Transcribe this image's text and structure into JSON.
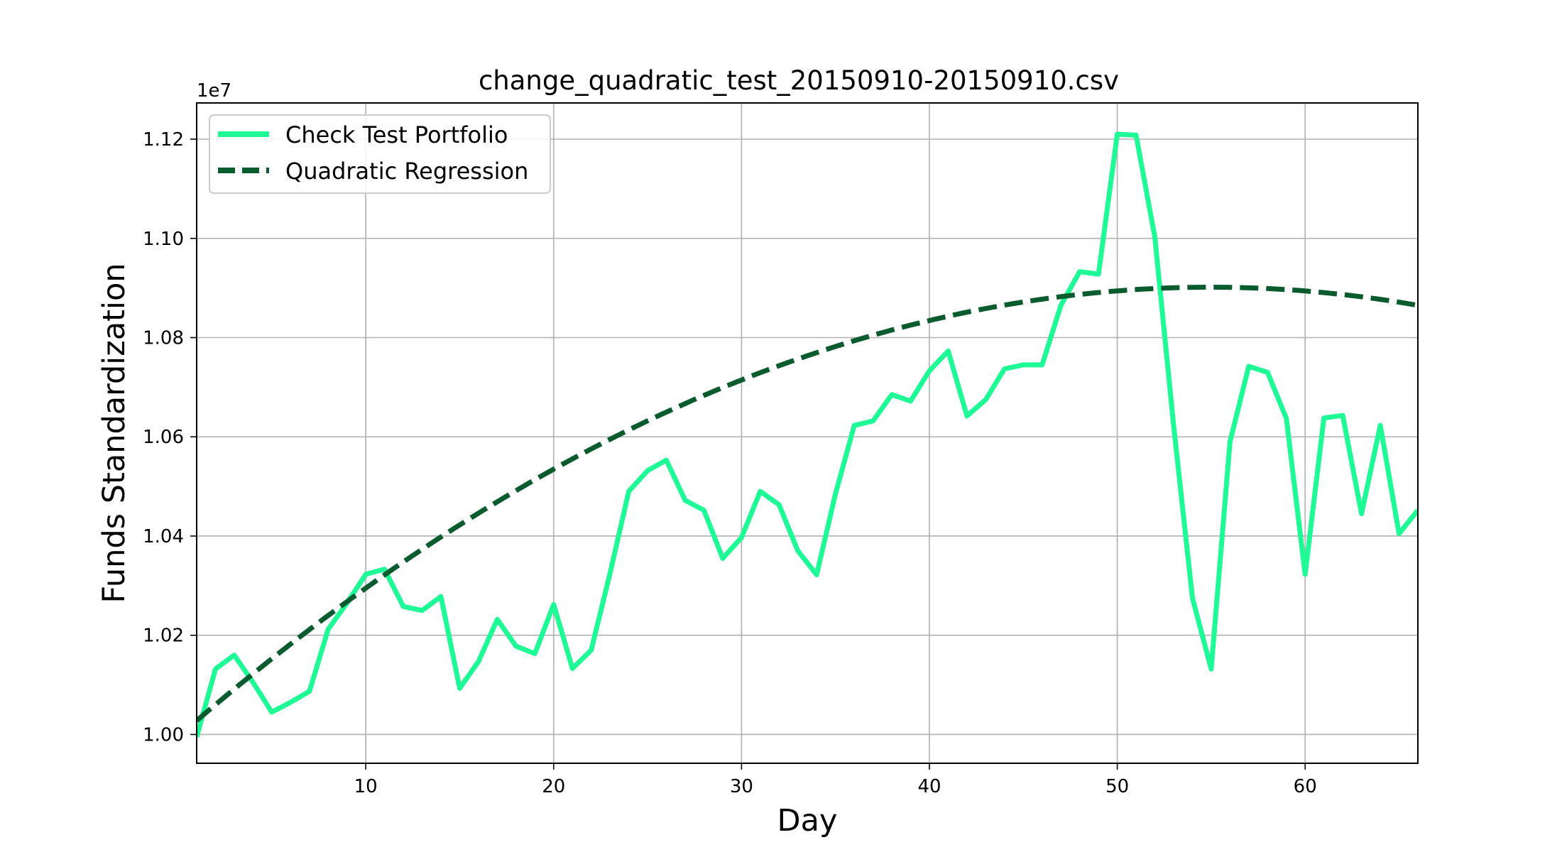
{
  "chart_data": {
    "type": "line",
    "title": "change_quadratic_test_20150910-20150910.csv",
    "xlabel": "Day",
    "ylabel": "Funds Standardization",
    "y_offset_label": "1e7",
    "xlim": [
      1,
      66
    ],
    "ylim": [
      0.9942,
      1.1273
    ],
    "x_ticks": [
      10,
      20,
      30,
      40,
      50,
      60
    ],
    "y_ticks": [
      1.0,
      1.02,
      1.04,
      1.06,
      1.08,
      1.1,
      1.12
    ],
    "y_tick_labels": [
      "1.00",
      "1.02",
      "1.04",
      "1.06",
      "1.08",
      "1.10",
      "1.12"
    ],
    "grid": true,
    "legend_position": "top-left",
    "series": [
      {
        "name": "Check Test Portfolio",
        "style": "solid",
        "color": "#1efa96",
        "x": [
          1,
          2,
          3,
          4,
          5,
          6,
          7,
          8,
          9,
          10,
          11,
          12,
          13,
          14,
          15,
          16,
          17,
          18,
          19,
          20,
          21,
          22,
          23,
          24,
          25,
          26,
          27,
          28,
          29,
          30,
          31,
          32,
          33,
          34,
          35,
          36,
          37,
          38,
          39,
          40,
          41,
          42,
          43,
          44,
          45,
          46,
          47,
          48,
          49,
          50,
          51,
          52,
          53,
          54,
          55,
          56,
          57,
          58,
          59,
          60,
          61,
          62,
          63,
          64,
          65,
          66
        ],
        "values": [
          0.9995,
          1.0132,
          1.016,
          1.0105,
          1.0045,
          1.0065,
          1.0087,
          1.0212,
          1.0265,
          1.0323,
          1.0333,
          1.0258,
          1.025,
          1.0278,
          1.0093,
          1.0147,
          1.0232,
          1.0178,
          1.0163,
          1.0262,
          1.0133,
          1.017,
          1.0325,
          1.049,
          1.0532,
          1.0553,
          1.0472,
          1.0452,
          1.0355,
          1.0397,
          1.049,
          1.0463,
          1.037,
          1.0322,
          1.0485,
          1.0623,
          1.0632,
          1.0685,
          1.0672,
          1.0733,
          1.0773,
          1.0642,
          1.0675,
          1.0737,
          1.0745,
          1.0745,
          1.0865,
          1.0933,
          1.0928,
          1.121,
          1.1208,
          1.1003,
          1.0623,
          1.0275,
          1.0132,
          1.059,
          1.0742,
          1.073,
          1.0637,
          1.0323,
          1.0638,
          1.0643,
          1.0445,
          1.0623,
          1.0405,
          1.0452
        ]
      },
      {
        "name": "Quadratic Regression",
        "style": "dashed",
        "color": "#0a5c2e",
        "coefficients": {
          "a": -3e-05,
          "b": 0.003298,
          "c": 0.99952
        }
      }
    ]
  }
}
